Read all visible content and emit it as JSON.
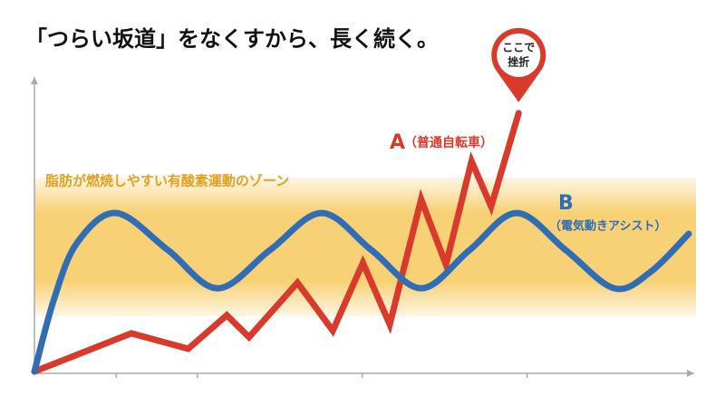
{
  "chart_data": {
    "type": "line",
    "title": "「つらい坂道」をなくすから、長く続く。",
    "zone": {
      "label": "脂肪が燃焼しやすい有酸素運動のゾーン",
      "range": [
        23.5,
        61.8
      ]
    },
    "pin": {
      "lines": [
        "ここで",
        "挫折"
      ]
    },
    "xlim": [
      0,
      100
    ],
    "ylim": [
      0,
      100
    ],
    "xticks": [
      12.5,
      24.9,
      50.1,
      75.3
    ],
    "series": [
      {
        "name": "A",
        "label": "（普通自転車）",
        "color": "#d93a2b",
        "smooth": false,
        "x": [
          0,
          14.8,
          23.5,
          29.4,
          32.8,
          40.2,
          45.6,
          50.2,
          54.3,
          59.1,
          62.9,
          66.8,
          69.8,
          74.0
        ],
        "values": [
          0.6,
          13.5,
          8.3,
          19.6,
          12.2,
          30.6,
          14.4,
          37.3,
          16.5,
          58.7,
          36.7,
          71.6,
          56.3,
          87.8
        ]
      },
      {
        "name": "B",
        "label": "（電気動きアシスト）",
        "color": "#2f6db5",
        "smooth": true,
        "x": [
          0,
          3.0,
          6.5,
          12.5,
          20.4,
          28.0,
          36.0,
          43.9,
          51.5,
          59.1,
          66.5,
          73.7,
          81.2,
          88.6,
          94.2,
          100
        ],
        "values": [
          0.6,
          25.1,
          44.0,
          54.1,
          41.6,
          28.7,
          41.6,
          54.1,
          41.6,
          28.7,
          41.6,
          54.1,
          41.6,
          28.7,
          34.3,
          47.1
        ]
      }
    ]
  }
}
